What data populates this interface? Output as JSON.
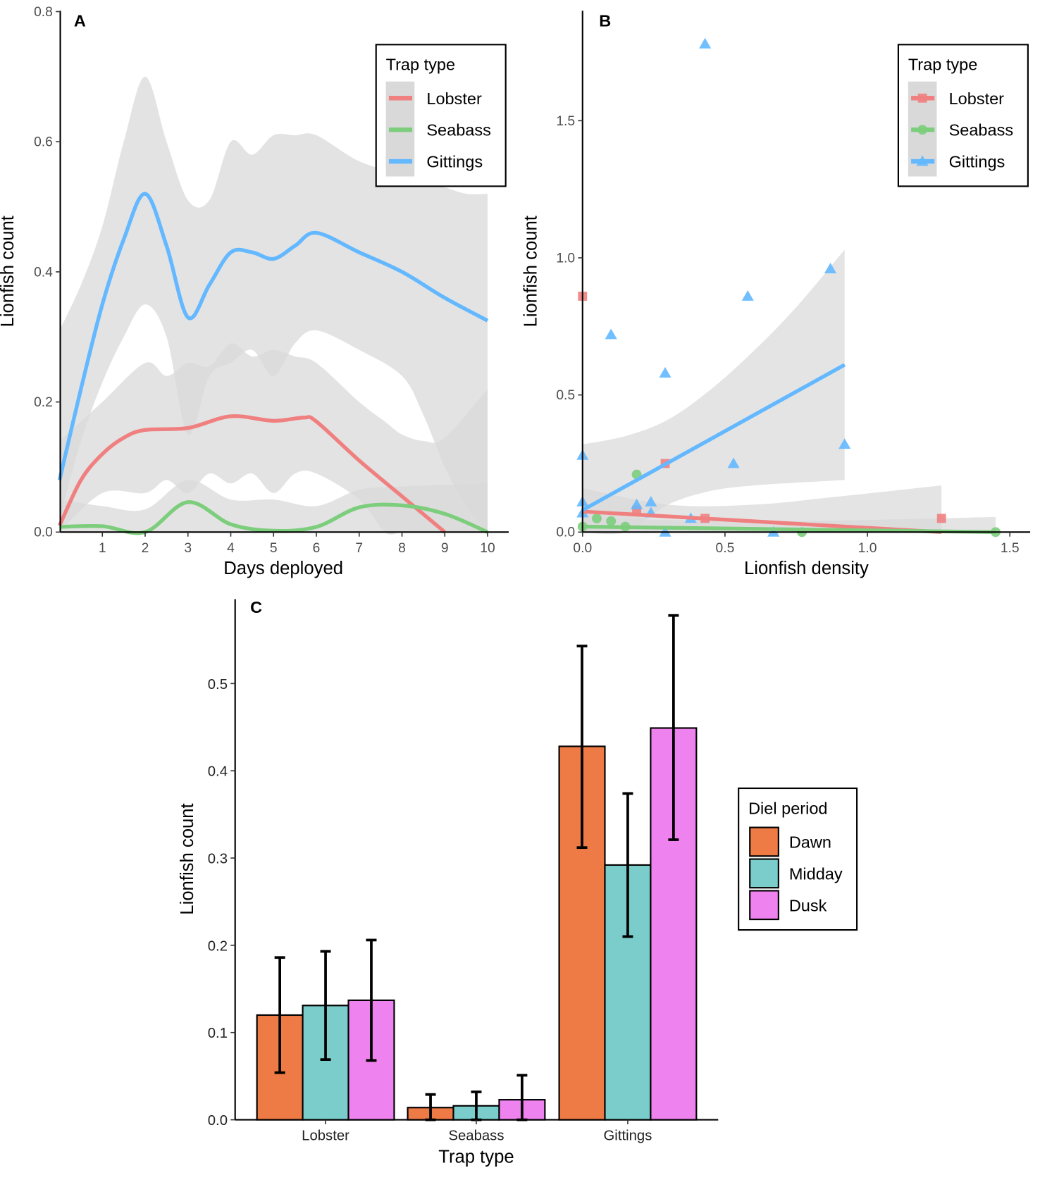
{
  "colors": {
    "Lobster": "#F08080",
    "Seabass": "#7CCD7C",
    "Gittings": "#63B8FF",
    "Dawn": "#EE7A45",
    "Midday": "#7ACDCB",
    "Dusk": "#EE82EE",
    "ribbon": "#d9d9d9"
  },
  "chart_data": [
    {
      "panel": "A",
      "type": "line",
      "xlabel": "Days deployed",
      "ylabel": "Lionfish count",
      "xlim": [
        0,
        10.5
      ],
      "ylim": [
        0,
        0.8
      ],
      "xticks": [
        1,
        2,
        3,
        4,
        5,
        6,
        7,
        8,
        9,
        10
      ],
      "yticks": [
        "0.0",
        "0.2",
        "0.4",
        "0.6",
        "0.8"
      ],
      "legend": {
        "title": "Trap type",
        "position": "top-right",
        "entries": [
          "Lobster",
          "Seabass",
          "Gittings"
        ]
      },
      "series": [
        {
          "name": "Lobster",
          "x": [
            0,
            0.5,
            1,
            1.5,
            2,
            3,
            4,
            5,
            5.7,
            6,
            7,
            8,
            9
          ],
          "y": [
            0.01,
            0.08,
            0.12,
            0.145,
            0.157,
            0.16,
            0.178,
            0.171,
            0.176,
            0.17,
            0.11,
            0.055,
            0.0
          ],
          "ci_x": [
            0,
            1,
            2,
            2.5,
            3,
            3.5,
            4,
            4.5,
            5,
            5.5,
            6,
            7,
            7.6,
            8,
            8.5,
            9,
            10
          ],
          "ci_upper": [
            0.14,
            0.2,
            0.26,
            0.24,
            0.26,
            0.255,
            0.29,
            0.27,
            0.28,
            0.27,
            0.26,
            0.2,
            0.17,
            0.15,
            0.14,
            0.145,
            0.22
          ],
          "ci_lower": [
            0,
            0.06,
            0.06,
            0.08,
            0.06,
            0.09,
            0.075,
            0.09,
            0.06,
            0.09,
            0.09,
            0.05,
            0,
            0,
            0,
            0,
            0
          ]
        },
        {
          "name": "Seabass",
          "x": [
            0,
            1,
            2,
            3,
            4,
            5,
            6,
            7,
            8,
            9,
            10
          ],
          "y": [
            0.008,
            0.009,
            0.0,
            0.046,
            0.012,
            0.002,
            0.008,
            0.038,
            0.041,
            0.028,
            0.0
          ],
          "ci_x": [
            0,
            1,
            2,
            3,
            4,
            5,
            6,
            7,
            8,
            10
          ],
          "ci_upper": [
            0.05,
            0.04,
            0.035,
            0.08,
            0.05,
            0.05,
            0.04,
            0.065,
            0.07,
            0.075
          ],
          "ci_lower": [
            0,
            0,
            0,
            0,
            0,
            0,
            0,
            0,
            0,
            0
          ]
        },
        {
          "name": "Gittings",
          "x": [
            0,
            0.5,
            1,
            1.5,
            2,
            2.5,
            3,
            3.5,
            4,
            4.5,
            5,
            5.5,
            6,
            7,
            8,
            9,
            10
          ],
          "y": [
            0.08,
            0.22,
            0.35,
            0.45,
            0.52,
            0.44,
            0.33,
            0.38,
            0.43,
            0.43,
            0.42,
            0.44,
            0.46,
            0.43,
            0.4,
            0.36,
            0.325
          ],
          "ci_x": [
            0,
            0.5,
            1,
            1.5,
            2,
            2.5,
            3,
            3.5,
            4,
            4.5,
            5,
            5.5,
            6,
            7,
            8,
            8.5,
            9,
            9.5,
            10
          ],
          "ci_upper": [
            0.31,
            0.38,
            0.47,
            0.6,
            0.7,
            0.6,
            0.51,
            0.51,
            0.6,
            0.58,
            0.61,
            0.61,
            0.61,
            0.57,
            0.55,
            0.54,
            0.53,
            0.52,
            0.52
          ],
          "ci_lower": [
            0.02,
            0.14,
            0.23,
            0.3,
            0.35,
            0.3,
            0.15,
            0.24,
            0.26,
            0.28,
            0.24,
            0.29,
            0.31,
            0.28,
            0.24,
            0.18,
            0.1,
            0.04,
            0.0
          ]
        }
      ]
    },
    {
      "panel": "B",
      "type": "scatter",
      "xlabel": "Lionfish density",
      "ylabel": "Lionfish count",
      "xlim": [
        0,
        1.57
      ],
      "ylim": [
        0,
        1.86
      ],
      "xticks": [
        "0.0",
        "0.5",
        "1.0",
        "1.5"
      ],
      "yticks": [
        "0.0",
        "0.5",
        "1.0",
        "1.5"
      ],
      "legend": {
        "title": "Trap type",
        "position": "top-right",
        "entries": [
          "Lobster",
          "Seabass",
          "Gittings"
        ]
      },
      "series": [
        {
          "name": "Lobster",
          "marker": "square",
          "points": [
            [
              0,
              0.86
            ],
            [
              0.29,
              0.25
            ],
            [
              0.19,
              0.08
            ],
            [
              0.43,
              0.05
            ],
            [
              1.26,
              0.05
            ]
          ],
          "fit": {
            "x": [
              0,
              1.26
            ],
            "y": [
              0.075,
              0.0
            ]
          },
          "ci": {
            "x": [
              0,
              0.3,
              0.6,
              0.9,
              1.26
            ],
            "upper": [
              0.16,
              0.1,
              0.1,
              0.13,
              0.17
            ],
            "lower": [
              0,
              0,
              0,
              0,
              0
            ]
          }
        },
        {
          "name": "Seabass",
          "marker": "circle",
          "points": [
            [
              0.19,
              0.21
            ],
            [
              0.05,
              0.05
            ],
            [
              0.1,
              0.04
            ],
            [
              0.15,
              0.02
            ],
            [
              0.0,
              0.02
            ],
            [
              0.77,
              0.0
            ],
            [
              1.45,
              0.0
            ]
          ],
          "fit": {
            "x": [
              0,
              1.45
            ],
            "y": [
              0.02,
              0.0
            ]
          },
          "ci": {
            "x": [
              0,
              0.7,
              1.45
            ],
            "upper": [
              0.05,
              0.04,
              0.055
            ],
            "lower": [
              0,
              0,
              0
            ]
          }
        },
        {
          "name": "Gittings",
          "marker": "triangle",
          "points": [
            [
              0.43,
              1.78
            ],
            [
              0.87,
              0.96
            ],
            [
              0.58,
              0.86
            ],
            [
              0.1,
              0.72
            ],
            [
              0.29,
              0.58
            ],
            [
              0.92,
              0.32
            ],
            [
              0.0,
              0.28
            ],
            [
              0.53,
              0.25
            ],
            [
              0.0,
              0.11
            ],
            [
              0.19,
              0.1
            ],
            [
              0.24,
              0.11
            ],
            [
              0.24,
              0.07
            ],
            [
              0.38,
              0.05
            ],
            [
              0.0,
              0.07
            ],
            [
              0.67,
              0.0
            ],
            [
              0.29,
              0.0
            ]
          ],
          "fit": {
            "x": [
              0,
              0.92
            ],
            "y": [
              0.08,
              0.61
            ]
          },
          "ci": {
            "x": [
              0,
              0.15,
              0.3,
              0.45,
              0.6,
              0.75,
              0.92
            ],
            "upper": [
              0.32,
              0.35,
              0.41,
              0.52,
              0.66,
              0.82,
              1.03
            ],
            "lower": [
              0,
              0,
              0.1,
              0.15,
              0.17,
              0.18,
              0.19
            ]
          }
        }
      ]
    },
    {
      "panel": "C",
      "type": "bar",
      "xlabel": "Trap type",
      "ylabel": "Lionfish count",
      "ylim": [
        0,
        0.59
      ],
      "yticks": [
        "0.0",
        "0.1",
        "0.2",
        "0.3",
        "0.4",
        "0.5"
      ],
      "categories": [
        "Lobster",
        "Seabass",
        "Gittings"
      ],
      "legend": {
        "title": "Diel period",
        "position": "right",
        "entries": [
          "Dawn",
          "Midday",
          "Dusk"
        ]
      },
      "series": [
        {
          "name": "Dawn",
          "values": [
            0.12,
            0.014,
            0.428
          ],
          "err_low": [
            0.054,
            0.0,
            0.312
          ],
          "err_high": [
            0.186,
            0.029,
            0.543
          ]
        },
        {
          "name": "Midday",
          "values": [
            0.131,
            0.016,
            0.292
          ],
          "err_low": [
            0.069,
            0.0,
            0.21
          ],
          "err_high": [
            0.193,
            0.032,
            0.374
          ]
        },
        {
          "name": "Dusk",
          "values": [
            0.137,
            0.023,
            0.449
          ],
          "err_low": [
            0.068,
            0.0,
            0.321
          ],
          "err_high": [
            0.206,
            0.051,
            0.578
          ]
        }
      ]
    }
  ]
}
